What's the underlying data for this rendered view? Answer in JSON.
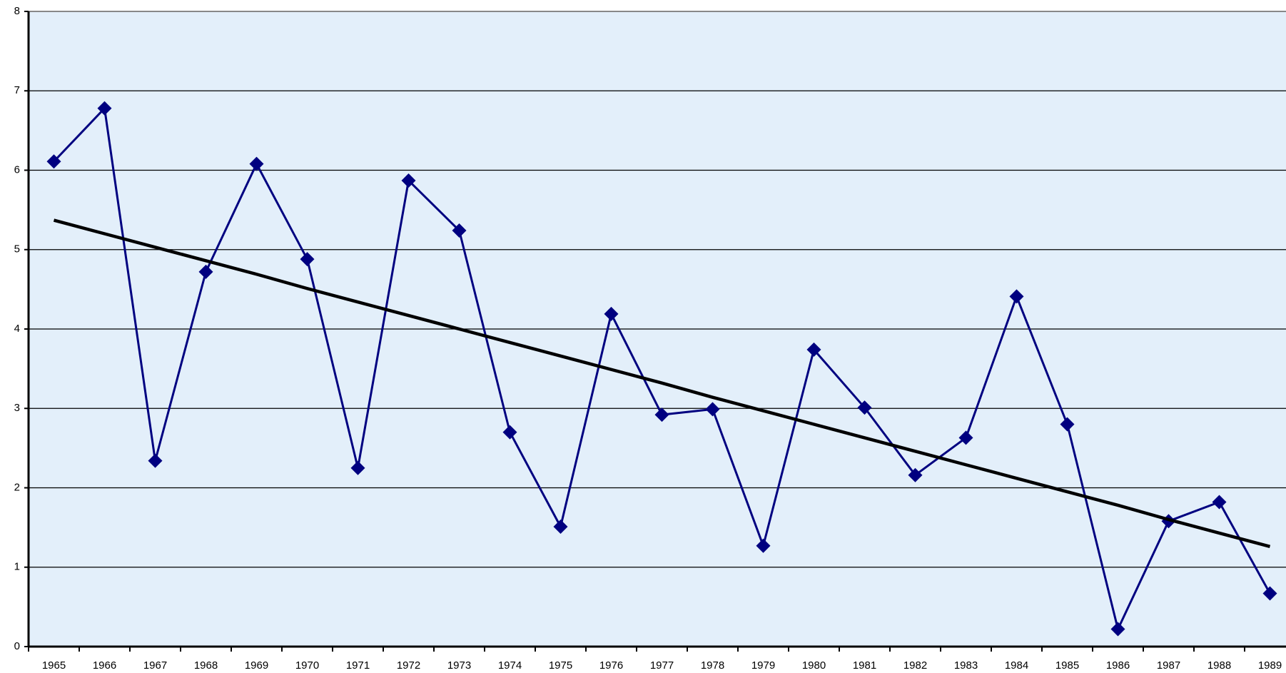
{
  "chart_data": {
    "type": "line",
    "categories": [
      "1965",
      "1966",
      "1967",
      "1968",
      "1969",
      "1970",
      "1971",
      "1972",
      "1973",
      "1974",
      "1975",
      "1976",
      "1977",
      "1978",
      "1979",
      "1980",
      "1981",
      "1982",
      "1983",
      "1984",
      "1985",
      "1986",
      "1987",
      "1988",
      "1989"
    ],
    "series": [
      {
        "color": "#000080",
        "marker": "diamond",
        "values": [
          6.11,
          6.78,
          2.34,
          4.72,
          6.08,
          4.88,
          2.25,
          5.87,
          5.24,
          2.7,
          1.51,
          4.19,
          2.92,
          2.99,
          1.27,
          3.74,
          3.01,
          2.16,
          2.63,
          4.41,
          2.8,
          0.22,
          1.58,
          1.82,
          0.67
        ]
      },
      {
        "color": "#000000",
        "marker": "none",
        "values": [
          5.37,
          5.2,
          5.03,
          4.86,
          4.69,
          4.51,
          4.34,
          4.17,
          4.0,
          3.83,
          3.66,
          3.49,
          3.32,
          3.14,
          2.97,
          2.8,
          2.63,
          2.46,
          2.29,
          2.12,
          1.95,
          1.78,
          1.6,
          1.43,
          1.26
        ]
      }
    ],
    "ylim": [
      0,
      8
    ],
    "yticks": [
      0,
      1,
      2,
      3,
      4,
      5,
      6,
      7,
      8
    ],
    "grid": true,
    "background": "#e3effa"
  }
}
